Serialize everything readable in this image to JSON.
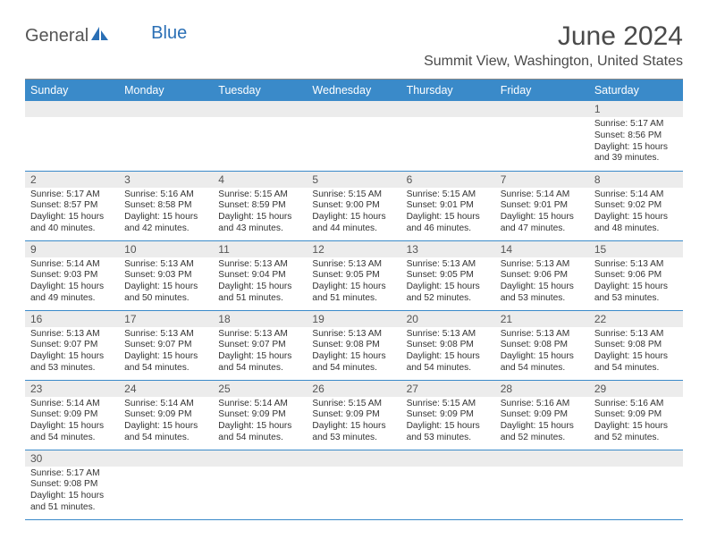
{
  "logo": {
    "part1": "General",
    "part2": "Blue"
  },
  "title": "June 2024",
  "location": "Summit View, Washington, United States",
  "colors": {
    "header_bg": "#3a8ac9",
    "header_text": "#ffffff",
    "daynum_bg": "#ececec",
    "row_border": "#3a8ac9",
    "logo_blue": "#2a6fb5",
    "logo_gray": "#555555"
  },
  "day_labels": [
    "Sunday",
    "Monday",
    "Tuesday",
    "Wednesday",
    "Thursday",
    "Friday",
    "Saturday"
  ],
  "weeks": [
    [
      {
        "n": "",
        "lines": []
      },
      {
        "n": "",
        "lines": []
      },
      {
        "n": "",
        "lines": []
      },
      {
        "n": "",
        "lines": []
      },
      {
        "n": "",
        "lines": []
      },
      {
        "n": "",
        "lines": []
      },
      {
        "n": "1",
        "lines": [
          "Sunrise: 5:17 AM",
          "Sunset: 8:56 PM",
          "Daylight: 15 hours and 39 minutes."
        ]
      }
    ],
    [
      {
        "n": "2",
        "lines": [
          "Sunrise: 5:17 AM",
          "Sunset: 8:57 PM",
          "Daylight: 15 hours and 40 minutes."
        ]
      },
      {
        "n": "3",
        "lines": [
          "Sunrise: 5:16 AM",
          "Sunset: 8:58 PM",
          "Daylight: 15 hours and 42 minutes."
        ]
      },
      {
        "n": "4",
        "lines": [
          "Sunrise: 5:15 AM",
          "Sunset: 8:59 PM",
          "Daylight: 15 hours and 43 minutes."
        ]
      },
      {
        "n": "5",
        "lines": [
          "Sunrise: 5:15 AM",
          "Sunset: 9:00 PM",
          "Daylight: 15 hours and 44 minutes."
        ]
      },
      {
        "n": "6",
        "lines": [
          "Sunrise: 5:15 AM",
          "Sunset: 9:01 PM",
          "Daylight: 15 hours and 46 minutes."
        ]
      },
      {
        "n": "7",
        "lines": [
          "Sunrise: 5:14 AM",
          "Sunset: 9:01 PM",
          "Daylight: 15 hours and 47 minutes."
        ]
      },
      {
        "n": "8",
        "lines": [
          "Sunrise: 5:14 AM",
          "Sunset: 9:02 PM",
          "Daylight: 15 hours and 48 minutes."
        ]
      }
    ],
    [
      {
        "n": "9",
        "lines": [
          "Sunrise: 5:14 AM",
          "Sunset: 9:03 PM",
          "Daylight: 15 hours and 49 minutes."
        ]
      },
      {
        "n": "10",
        "lines": [
          "Sunrise: 5:13 AM",
          "Sunset: 9:03 PM",
          "Daylight: 15 hours and 50 minutes."
        ]
      },
      {
        "n": "11",
        "lines": [
          "Sunrise: 5:13 AM",
          "Sunset: 9:04 PM",
          "Daylight: 15 hours and 51 minutes."
        ]
      },
      {
        "n": "12",
        "lines": [
          "Sunrise: 5:13 AM",
          "Sunset: 9:05 PM",
          "Daylight: 15 hours and 51 minutes."
        ]
      },
      {
        "n": "13",
        "lines": [
          "Sunrise: 5:13 AM",
          "Sunset: 9:05 PM",
          "Daylight: 15 hours and 52 minutes."
        ]
      },
      {
        "n": "14",
        "lines": [
          "Sunrise: 5:13 AM",
          "Sunset: 9:06 PM",
          "Daylight: 15 hours and 53 minutes."
        ]
      },
      {
        "n": "15",
        "lines": [
          "Sunrise: 5:13 AM",
          "Sunset: 9:06 PM",
          "Daylight: 15 hours and 53 minutes."
        ]
      }
    ],
    [
      {
        "n": "16",
        "lines": [
          "Sunrise: 5:13 AM",
          "Sunset: 9:07 PM",
          "Daylight: 15 hours and 53 minutes."
        ]
      },
      {
        "n": "17",
        "lines": [
          "Sunrise: 5:13 AM",
          "Sunset: 9:07 PM",
          "Daylight: 15 hours and 54 minutes."
        ]
      },
      {
        "n": "18",
        "lines": [
          "Sunrise: 5:13 AM",
          "Sunset: 9:07 PM",
          "Daylight: 15 hours and 54 minutes."
        ]
      },
      {
        "n": "19",
        "lines": [
          "Sunrise: 5:13 AM",
          "Sunset: 9:08 PM",
          "Daylight: 15 hours and 54 minutes."
        ]
      },
      {
        "n": "20",
        "lines": [
          "Sunrise: 5:13 AM",
          "Sunset: 9:08 PM",
          "Daylight: 15 hours and 54 minutes."
        ]
      },
      {
        "n": "21",
        "lines": [
          "Sunrise: 5:13 AM",
          "Sunset: 9:08 PM",
          "Daylight: 15 hours and 54 minutes."
        ]
      },
      {
        "n": "22",
        "lines": [
          "Sunrise: 5:13 AM",
          "Sunset: 9:08 PM",
          "Daylight: 15 hours and 54 minutes."
        ]
      }
    ],
    [
      {
        "n": "23",
        "lines": [
          "Sunrise: 5:14 AM",
          "Sunset: 9:09 PM",
          "Daylight: 15 hours and 54 minutes."
        ]
      },
      {
        "n": "24",
        "lines": [
          "Sunrise: 5:14 AM",
          "Sunset: 9:09 PM",
          "Daylight: 15 hours and 54 minutes."
        ]
      },
      {
        "n": "25",
        "lines": [
          "Sunrise: 5:14 AM",
          "Sunset: 9:09 PM",
          "Daylight: 15 hours and 54 minutes."
        ]
      },
      {
        "n": "26",
        "lines": [
          "Sunrise: 5:15 AM",
          "Sunset: 9:09 PM",
          "Daylight: 15 hours and 53 minutes."
        ]
      },
      {
        "n": "27",
        "lines": [
          "Sunrise: 5:15 AM",
          "Sunset: 9:09 PM",
          "Daylight: 15 hours and 53 minutes."
        ]
      },
      {
        "n": "28",
        "lines": [
          "Sunrise: 5:16 AM",
          "Sunset: 9:09 PM",
          "Daylight: 15 hours and 52 minutes."
        ]
      },
      {
        "n": "29",
        "lines": [
          "Sunrise: 5:16 AM",
          "Sunset: 9:09 PM",
          "Daylight: 15 hours and 52 minutes."
        ]
      }
    ],
    [
      {
        "n": "30",
        "lines": [
          "Sunrise: 5:17 AM",
          "Sunset: 9:08 PM",
          "Daylight: 15 hours and 51 minutes."
        ]
      },
      {
        "n": "",
        "lines": []
      },
      {
        "n": "",
        "lines": []
      },
      {
        "n": "",
        "lines": []
      },
      {
        "n": "",
        "lines": []
      },
      {
        "n": "",
        "lines": []
      },
      {
        "n": "",
        "lines": []
      }
    ]
  ]
}
